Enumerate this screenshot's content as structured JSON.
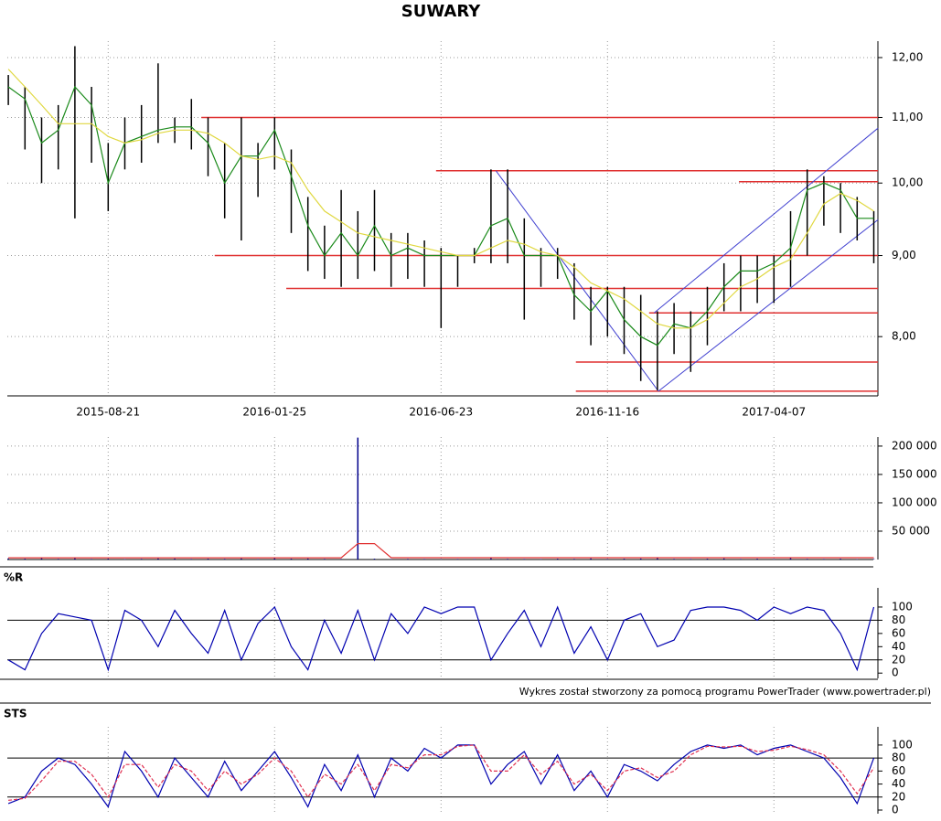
{
  "chart_data": [
    {
      "type": "ohlc",
      "title": "SUWARY",
      "categories": [
        null,
        null,
        null,
        null,
        null,
        null,
        "2015-08-21",
        null,
        null,
        null,
        null,
        null,
        null,
        null,
        null,
        null,
        "2016-01-25",
        null,
        null,
        null,
        null,
        null,
        null,
        null,
        null,
        null,
        "2016-06-23",
        null,
        null,
        null,
        null,
        null,
        null,
        null,
        null,
        null,
        "2016-11-16",
        null,
        null,
        null,
        null,
        null,
        null,
        null,
        null,
        null,
        "2017-04-07",
        null,
        null,
        null,
        null,
        null,
        null
      ],
      "high": [
        11.7,
        11.5,
        11.0,
        11.2,
        12.2,
        11.5,
        10.6,
        11.0,
        11.2,
        11.9,
        11.0,
        11.3,
        11.0,
        10.6,
        11.0,
        10.6,
        11.0,
        10.5,
        9.8,
        9.4,
        9.9,
        9.6,
        9.9,
        9.3,
        9.3,
        9.2,
        9.1,
        9.0,
        9.1,
        10.2,
        10.2,
        9.5,
        9.1,
        9.1,
        8.9,
        8.6,
        8.6,
        8.6,
        8.5,
        8.3,
        8.4,
        8.3,
        8.6,
        8.9,
        9.0,
        9.0,
        9.0,
        9.6,
        10.2,
        10.1,
        10.0,
        9.8,
        9.6
      ],
      "low": [
        11.2,
        10.5,
        10.0,
        10.2,
        9.5,
        10.3,
        9.6,
        10.2,
        10.3,
        10.6,
        10.6,
        10.5,
        10.1,
        9.5,
        9.2,
        9.8,
        10.2,
        9.3,
        8.8,
        8.7,
        8.6,
        8.7,
        8.8,
        8.6,
        8.7,
        8.6,
        8.1,
        8.6,
        8.9,
        8.9,
        8.9,
        8.2,
        8.6,
        8.7,
        8.2,
        7.9,
        8.0,
        7.8,
        7.5,
        7.4,
        7.8,
        7.6,
        7.9,
        8.3,
        8.3,
        8.4,
        8.4,
        8.6,
        9.0,
        9.4,
        9.3,
        9.2,
        8.9
      ],
      "bar_color": "#000000",
      "series": [
        {
          "color": "#1a8a1a",
          "values": [
            11.5,
            11.3,
            10.6,
            10.8,
            11.5,
            11.2,
            10.0,
            10.6,
            10.7,
            10.8,
            10.85,
            10.85,
            10.6,
            10.0,
            10.4,
            10.4,
            10.8,
            10.1,
            9.4,
            9.0,
            9.3,
            9.0,
            9.4,
            9.0,
            9.1,
            9.0,
            9.0,
            9.0,
            9.0,
            9.4,
            9.5,
            9.0,
            9.0,
            9.0,
            8.5,
            8.3,
            8.55,
            8.2,
            8.0,
            7.9,
            8.15,
            8.1,
            8.3,
            8.6,
            8.8,
            8.8,
            8.9,
            9.1,
            9.9,
            10.0,
            9.9,
            9.5,
            9.5
          ]
        },
        {
          "color": "#e0d840",
          "values": [
            11.8,
            11.5,
            11.2,
            10.9,
            10.9,
            10.9,
            10.7,
            10.6,
            10.65,
            10.75,
            10.8,
            10.8,
            10.75,
            10.6,
            10.4,
            10.35,
            10.4,
            10.3,
            9.9,
            9.6,
            9.45,
            9.3,
            9.25,
            9.2,
            9.15,
            9.1,
            9.05,
            9.0,
            9.0,
            9.1,
            9.2,
            9.15,
            9.05,
            9.0,
            8.85,
            8.65,
            8.55,
            8.45,
            8.3,
            8.15,
            8.1,
            8.1,
            8.2,
            8.4,
            8.6,
            8.7,
            8.85,
            8.95,
            9.3,
            9.7,
            9.85,
            9.75,
            9.6
          ]
        }
      ],
      "log": true,
      "ylim": [
        7.34,
        12.29
      ],
      "yticks": [
        {
          "value": 8,
          "label": "8,00"
        },
        {
          "value": 9,
          "label": "9,00"
        },
        {
          "value": 10,
          "label": "10,00"
        },
        {
          "value": 11,
          "label": "11,00"
        },
        {
          "value": 12,
          "label": "12,00"
        }
      ],
      "grid": true,
      "level_color": "#e03030",
      "levels": [
        {
          "value": 11.0,
          "from": 11.6,
          "to": 52.25
        },
        {
          "value": 10.18,
          "from": 25.7,
          "to": 52.25
        },
        {
          "value": 10.02,
          "from": 43.9,
          "to": 52.25
        },
        {
          "value": 9.0,
          "from": 12.4,
          "to": 52.25
        },
        {
          "value": 8.58,
          "from": 16.7,
          "to": 52.25
        },
        {
          "value": 8.28,
          "from": 38.5,
          "to": 52.25
        },
        {
          "value": 7.71,
          "from": 34.1,
          "to": 52.25
        },
        {
          "value": 7.39,
          "from": 34.1,
          "to": 52.25
        }
      ],
      "trend_color": "#4040d0",
      "trendlines": [
        {
          "x": [
            29.3,
            39.06
          ],
          "y": [
            10.18,
            7.39
          ]
        },
        {
          "x": [
            39.06,
            52.25
          ],
          "y": [
            7.39,
            9.48
          ]
        },
        {
          "x": [
            38.8,
            52.25
          ],
          "y": [
            8.28,
            10.83
          ]
        }
      ]
    },
    {
      "type": "bar",
      "color": "#00008b",
      "values": [
        2000,
        1500,
        2500,
        1200,
        3000,
        1000,
        1500,
        800,
        1200,
        2000,
        1800,
        1000,
        1500,
        1200,
        2000,
        900,
        3500,
        1500,
        1800,
        1200,
        1000,
        215000,
        1500,
        800,
        1200,
        1000,
        600,
        1000,
        900,
        3500,
        1200,
        1000,
        800,
        1500,
        1200,
        2000,
        1000,
        1500,
        1800,
        2500,
        1200,
        1000,
        1500,
        2000,
        1000,
        1500,
        800,
        2500,
        1200,
        1000,
        1500,
        800,
        1000
      ],
      "series": [
        {
          "color": "#e03030",
          "values": [
            3000,
            3000,
            3000,
            3000,
            3000,
            3000,
            3000,
            3000,
            3000,
            3000,
            3000,
            3000,
            3000,
            3000,
            3000,
            3000,
            3000,
            3000,
            3000,
            3000,
            3000,
            28000,
            28000,
            3200,
            3200,
            3200,
            3200,
            3200,
            3200,
            3200,
            3200,
            3200,
            3200,
            3200,
            3200,
            3200,
            3200,
            3200,
            3200,
            3200,
            3200,
            3200,
            3200,
            3200,
            3200,
            3200,
            3200,
            3200,
            3200,
            3200,
            3200,
            3200,
            3200
          ]
        }
      ],
      "ylim": [
        0,
        216000
      ],
      "yticks": [
        {
          "value": 50000,
          "label": "50 000"
        },
        {
          "value": 100000,
          "label": "100 000"
        },
        {
          "value": 150000,
          "label": "150 000"
        },
        {
          "value": 200000,
          "label": "200 000"
        }
      ],
      "grid": true
    },
    {
      "type": "line",
      "title": "%R",
      "series": [
        {
          "color": "#0000b0",
          "values": [
            20,
            5,
            60,
            90,
            85,
            80,
            5,
            95,
            80,
            40,
            95,
            60,
            30,
            95,
            20,
            75,
            100,
            40,
            5,
            80,
            30,
            95,
            20,
            90,
            60,
            100,
            90,
            100,
            100,
            20,
            60,
            95,
            40,
            100,
            30,
            70,
            20,
            80,
            90,
            40,
            50,
            95,
            100,
            100,
            95,
            80,
            100,
            90,
            100,
            95,
            60,
            5,
            100
          ]
        }
      ],
      "ylim": [
        -8,
        129
      ],
      "yticks": [
        0,
        20,
        40,
        60,
        80,
        100
      ],
      "levels": [
        20,
        80
      ]
    },
    {
      "type": "line",
      "title": "STS",
      "series": [
        {
          "color": "#0000b0",
          "values": [
            10,
            20,
            60,
            80,
            70,
            40,
            5,
            90,
            60,
            20,
            80,
            50,
            20,
            75,
            30,
            60,
            90,
            50,
            5,
            70,
            30,
            85,
            20,
            80,
            60,
            95,
            80,
            100,
            100,
            40,
            70,
            90,
            40,
            85,
            30,
            60,
            20,
            70,
            60,
            45,
            70,
            90,
            100,
            95,
            100,
            85,
            95,
            100,
            90,
            80,
            50,
            10,
            80
          ]
        },
        {
          "color": "#e03050",
          "dashed": true,
          "values": [
            15,
            18,
            45,
            75,
            75,
            55,
            20,
            70,
            70,
            35,
            70,
            60,
            30,
            60,
            40,
            55,
            80,
            60,
            20,
            55,
            40,
            70,
            30,
            70,
            65,
            85,
            85,
            98,
            100,
            60,
            60,
            85,
            55,
            75,
            40,
            55,
            30,
            60,
            65,
            50,
            60,
            85,
            98,
            97,
            98,
            90,
            92,
            98,
            93,
            85,
            60,
            25,
            65
          ]
        }
      ],
      "ylim": [
        -5.6,
        128
      ],
      "yticks": [
        0,
        20,
        40,
        60,
        80,
        100
      ],
      "levels": [
        20,
        80
      ]
    }
  ],
  "footer": "Wykres został stworzony za pomocą programu PowerTrader (www.powertrader.pl)"
}
